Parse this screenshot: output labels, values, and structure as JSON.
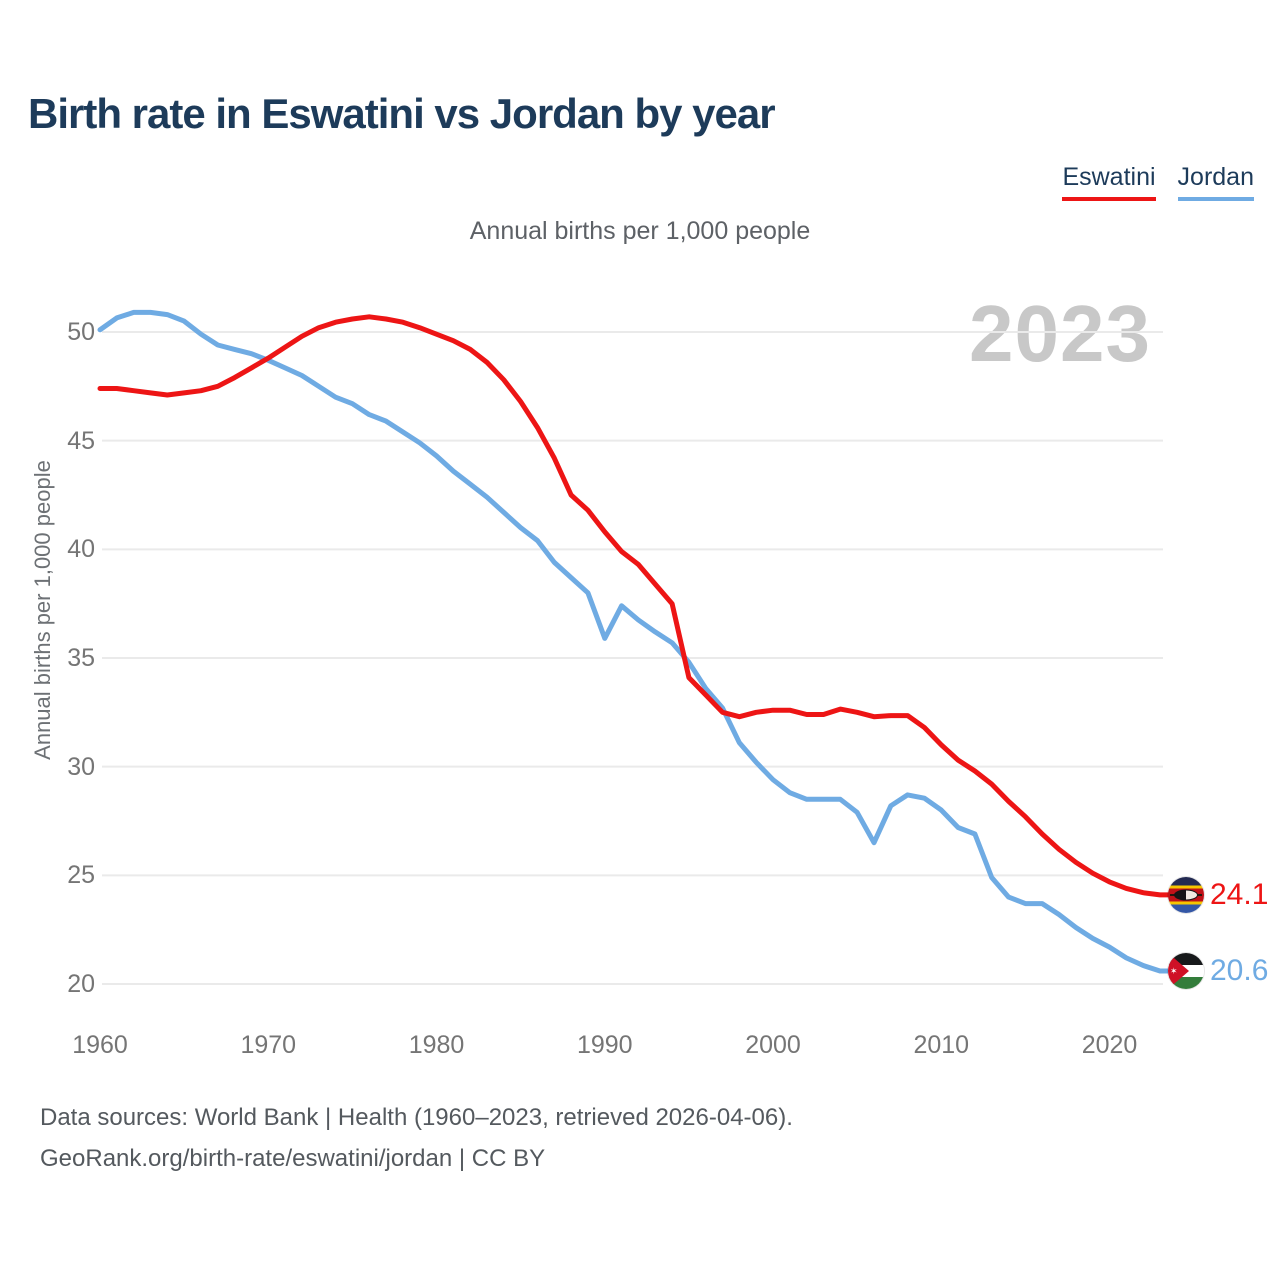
{
  "header": {
    "title": "Birth rate in Eswatini vs Jordan by year"
  },
  "legend": {
    "items": [
      {
        "label": "Eswatini",
        "color": "#ed1515"
      },
      {
        "label": "Jordan",
        "color": "#6fabe3"
      }
    ]
  },
  "chart": {
    "subtitle": "Annual births per 1,000 people",
    "watermark": "2023",
    "y_axis_label": "Annual births per 1,000 people",
    "end_labels": {
      "eswatini": "24.1",
      "jordan": "20.6"
    }
  },
  "chart_data": {
    "type": "line",
    "title": "Birth rate in Eswatini vs Jordan by year",
    "subtitle": "Annual births per 1,000 people",
    "xlabel": "",
    "ylabel": "Annual births per 1,000 people",
    "x_ticks": [
      1960,
      1970,
      1980,
      1990,
      2000,
      2010,
      2020
    ],
    "y_ticks": [
      20,
      25,
      30,
      35,
      40,
      45,
      50
    ],
    "ylim": [
      18.5,
      52
    ],
    "grid": "horizontal",
    "legend_position": "top-right",
    "x": [
      1960,
      1961,
      1962,
      1963,
      1964,
      1965,
      1966,
      1967,
      1968,
      1969,
      1970,
      1971,
      1972,
      1973,
      1974,
      1975,
      1976,
      1977,
      1978,
      1979,
      1980,
      1981,
      1982,
      1983,
      1984,
      1985,
      1986,
      1987,
      1988,
      1989,
      1990,
      1991,
      1992,
      1993,
      1994,
      1995,
      1996,
      1997,
      1998,
      1999,
      2000,
      2001,
      2002,
      2003,
      2004,
      2005,
      2006,
      2007,
      2008,
      2009,
      2010,
      2011,
      2012,
      2013,
      2014,
      2015,
      2016,
      2017,
      2018,
      2019,
      2020,
      2021,
      2022,
      2023
    ],
    "series": [
      {
        "name": "Eswatini",
        "key": "eswatini",
        "color": "#ed1515",
        "final_value": 24.1,
        "values": [
          47.4,
          47.4,
          47.3,
          47.2,
          47.1,
          47.2,
          47.3,
          47.5,
          47.9,
          48.35,
          48.8,
          49.3,
          49.8,
          50.2,
          50.45,
          50.6,
          50.7,
          50.6,
          50.45,
          50.2,
          49.9,
          49.6,
          49.2,
          48.6,
          47.8,
          46.8,
          45.6,
          44.2,
          42.5,
          41.8,
          40.8,
          39.9,
          39.3,
          38.4,
          37.5,
          34.1,
          33.3,
          32.5,
          32.3,
          32.5,
          32.6,
          32.6,
          32.4,
          32.4,
          32.65,
          32.5,
          32.3,
          32.35,
          32.35,
          31.8,
          31.0,
          30.3,
          29.8,
          29.2,
          28.4,
          27.7,
          26.9,
          26.2,
          25.6,
          25.1,
          24.7,
          24.4,
          24.2,
          24.1
        ]
      },
      {
        "name": "Jordan",
        "key": "jordan",
        "color": "#6fabe3",
        "final_value": 20.6,
        "values": [
          50.1,
          50.65,
          50.9,
          50.9,
          50.8,
          50.5,
          49.9,
          49.4,
          49.2,
          49.0,
          48.7,
          48.35,
          48.0,
          47.5,
          47.0,
          46.7,
          46.2,
          45.9,
          45.4,
          44.9,
          44.3,
          43.6,
          43.0,
          42.4,
          41.7,
          41.0,
          40.4,
          39.4,
          38.7,
          38.0,
          35.9,
          37.4,
          36.75,
          36.2,
          35.7,
          34.8,
          33.6,
          32.7,
          31.1,
          30.2,
          29.4,
          28.8,
          28.5,
          28.5,
          28.5,
          27.9,
          26.5,
          28.2,
          28.7,
          28.55,
          28.0,
          27.2,
          26.9,
          24.9,
          24.0,
          23.7,
          23.7,
          23.2,
          22.6,
          22.1,
          21.7,
          21.2,
          20.85,
          20.6
        ]
      }
    ]
  },
  "footer": {
    "line1": "Data sources: World Bank | Health (1960–2023, retrieved 2026-04-06).",
    "line2": "GeoRank.org/birth-rate/eswatini/jordan | CC BY"
  }
}
